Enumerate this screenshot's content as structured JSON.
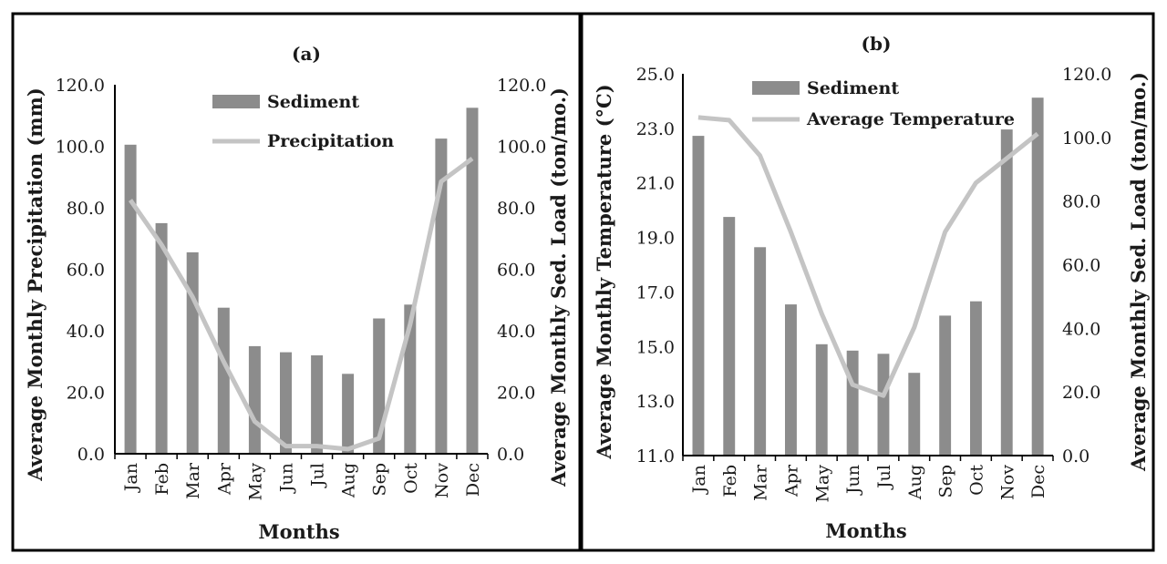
{
  "colors": {
    "bar": "#8c8c8c",
    "line": "#c4c4c4",
    "axis": "#000000"
  },
  "chart_data": [
    {
      "type": "bar",
      "title": "(a)",
      "xlabel": "Months",
      "ylabel": "Average Monthly Precipitation (mm)",
      "y2label": "Average Monthly Sed. Load (ton/mo.)",
      "ylim": [
        0,
        120
      ],
      "y2lim": [
        0,
        120
      ],
      "yticks": [
        "0.0",
        "20.0",
        "40.0",
        "60.0",
        "80.0",
        "100.0",
        "120.0"
      ],
      "y2ticks": [
        "0.0",
        "20.0",
        "40.0",
        "60.0",
        "80.0",
        "100.0",
        "120.0"
      ],
      "categories": [
        "Jan",
        "Feb",
        "Mar",
        "Apr",
        "May",
        "Jun",
        "Jul",
        "Aug",
        "Sep",
        "Oct",
        "Nov",
        "Dec"
      ],
      "legend_position": "top-center",
      "series": [
        {
          "name": "Sediment",
          "type": "bar",
          "axis": "secondary",
          "values": [
            100.5,
            75.0,
            65.5,
            47.5,
            35.0,
            33.0,
            32.0,
            26.0,
            44.0,
            48.5,
            102.5,
            112.5
          ]
        },
        {
          "name": "Precipitation",
          "type": "line",
          "axis": "primary",
          "values": [
            82.5,
            68.0,
            51.0,
            30.0,
            10.5,
            2.5,
            2.5,
            1.5,
            5.0,
            42.0,
            88.5,
            96.0
          ]
        }
      ]
    },
    {
      "type": "bar",
      "title": "(b)",
      "xlabel": "Months",
      "ylabel": "Average Monthly Temperature (°C)",
      "y2label": "Average Monthly Sed. Load (ton/mo.)",
      "ylim": [
        11,
        25
      ],
      "y2lim": [
        0,
        120
      ],
      "yticks": [
        "11.0",
        "13.0",
        "15.0",
        "17.0",
        "19.0",
        "21.0",
        "23.0",
        "25.0"
      ],
      "y2ticks": [
        "0.0",
        "20.0",
        "40.0",
        "60.0",
        "80.0",
        "100.0",
        "120.0"
      ],
      "categories": [
        "Jan",
        "Feb",
        "Mar",
        "Apr",
        "May",
        "Jun",
        "Jul",
        "Aug",
        "Sep",
        "Oct",
        "Nov",
        "Dec"
      ],
      "legend_position": "top-left",
      "series": [
        {
          "name": "Sediment",
          "type": "bar",
          "axis": "secondary",
          "values": [
            100.5,
            75.0,
            65.5,
            47.5,
            35.0,
            33.0,
            32.0,
            26.0,
            44.0,
            48.5,
            102.5,
            112.5
          ]
        },
        {
          "name": "Average Temperature",
          "type": "line",
          "axis": "primary",
          "values": [
            23.4,
            23.3,
            22.0,
            19.2,
            16.2,
            13.6,
            13.2,
            15.7,
            19.2,
            21.0,
            21.9,
            22.8
          ]
        }
      ]
    }
  ]
}
